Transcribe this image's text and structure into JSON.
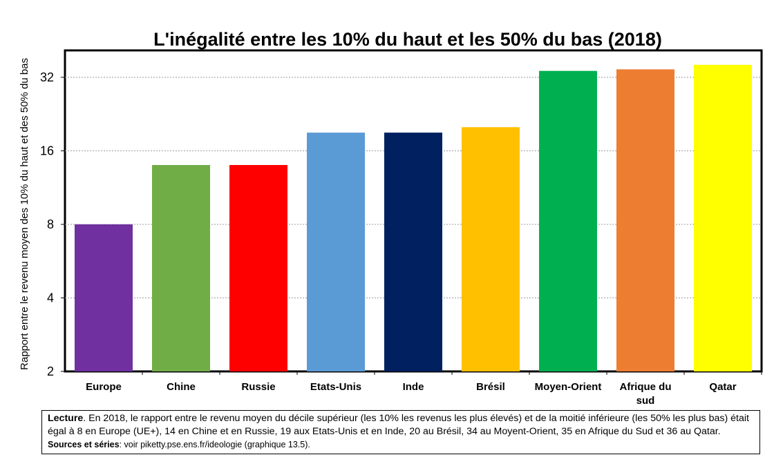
{
  "chart_data": {
    "type": "bar",
    "title": "L'inégalité entre les 10% du haut et les 50% du bas (2018)",
    "ylabel": "Rapport entre le revenu moyen des 10% du haut et des 50% du bas",
    "xlabel": "",
    "y_scale": "log2",
    "ylim": [
      2,
      38
    ],
    "y_ticks": [
      2,
      4,
      8,
      16,
      32
    ],
    "grid": "horizontal dashed",
    "categories": [
      "Europe",
      "Chine",
      "Russie",
      "Etats-Unis",
      "Inde",
      "Brésil",
      "Moyen-Orient",
      "Afrique du sud",
      "Qatar"
    ],
    "category_lines": [
      [
        "Europe"
      ],
      [
        "Chine"
      ],
      [
        "Russie"
      ],
      [
        "Etats-Unis"
      ],
      [
        "Inde"
      ],
      [
        "Brésil"
      ],
      [
        "Moyen-Orient"
      ],
      [
        "Afrique du",
        "sud"
      ],
      [
        "Qatar"
      ]
    ],
    "values": [
      8,
      14,
      14,
      19,
      19,
      20,
      34,
      34.5,
      36
    ],
    "colors": [
      "#7030a0",
      "#70ad47",
      "#ff0000",
      "#5b9bd5",
      "#002060",
      "#ffc000",
      "#00b050",
      "#ed7d31",
      "#ffff00"
    ]
  },
  "note": {
    "lead": "Lecture",
    "text": ". En 2018, le rapport entre le revenu moyen du décile supérieur (les 10% les revenus les plus élevés) et de la moitié inférieure (les 50% les plus bas) était égal à 8 en Europe (UE+), 14 en Chine et en Russie, 19 aux Etats-Unis et en Inde, 20 au Brésil, 34 au Moyent-Orient, 35 en Afrique du Sud et 36 au Qatar.",
    "sources_label": "Sources et séries",
    "sources_text": ": voir piketty.pse.ens.fr/ideologie (graphique 13.5)."
  }
}
